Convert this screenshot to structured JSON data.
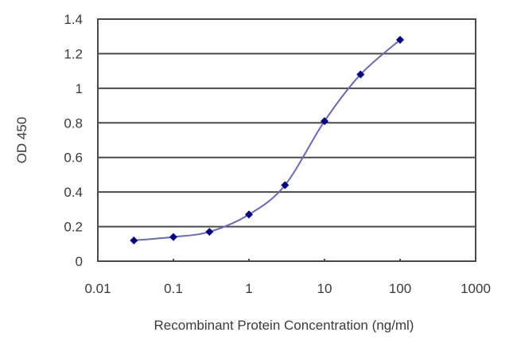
{
  "chart_data": {
    "type": "line",
    "title": "",
    "xlabel": "Recombinant Protein Concentration (ng/ml)",
    "ylabel": "OD 450",
    "xscale": "log",
    "xlim": [
      0.01,
      1000
    ],
    "ylim": [
      0,
      1.4
    ],
    "x_ticks": [
      0.01,
      0.1,
      1,
      10,
      100,
      1000
    ],
    "x_tick_labels": [
      "0.01",
      "0.1",
      "1",
      "10",
      "100",
      "1000"
    ],
    "y_ticks": [
      0,
      0.2,
      0.4,
      0.6,
      0.8,
      1,
      1.2,
      1.4
    ],
    "y_tick_labels": [
      "0",
      "0.2",
      "0.4",
      "0.6",
      "0.8",
      "1",
      "1.2",
      "1.4"
    ],
    "grid": {
      "horizontal": true,
      "vertical": false
    },
    "legend": null,
    "series": [
      {
        "name": "OD 450",
        "marker": "diamond",
        "color": "#000080",
        "line_color": "#6a6ab0",
        "smooth": true,
        "x": [
          0.03,
          0.1,
          0.3,
          1,
          3,
          10,
          30,
          100
        ],
        "values": [
          0.12,
          0.14,
          0.17,
          0.27,
          0.44,
          0.81,
          1.08,
          1.28
        ]
      }
    ]
  },
  "colors": {
    "background": "#ffffff",
    "gridline": "#4a4a4a",
    "frame": "#4a4a4a",
    "marker": "#000080",
    "line": "#6a6ab0",
    "text": "#3a3a3a"
  }
}
